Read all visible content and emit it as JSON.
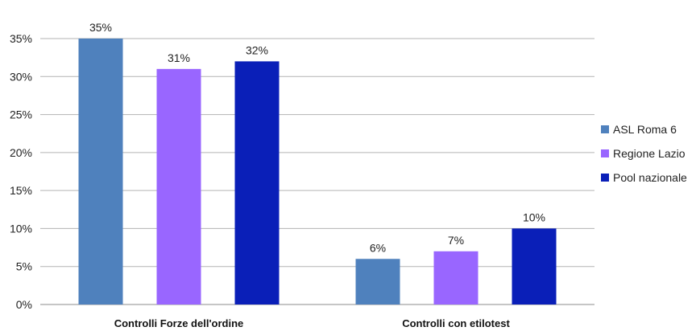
{
  "chart_data": {
    "type": "bar",
    "categories": [
      "Controlli Forze dell'ordine",
      "Controlli con  etilotest"
    ],
    "series": [
      {
        "name": "ASL Roma 6",
        "values": [
          35,
          6
        ],
        "color": "#4f81bd"
      },
      {
        "name": "Regione Lazio",
        "values": [
          31,
          7
        ],
        "color": "#9966ff"
      },
      {
        "name": "Pool nazionale",
        "values": [
          32,
          10
        ],
        "color": "#0a1fb8"
      }
    ],
    "data_labels": [
      [
        "35%",
        "6%"
      ],
      [
        "31%",
        "7%"
      ],
      [
        "32%",
        "10%"
      ]
    ],
    "yticks": [
      "0%",
      "5%",
      "10%",
      "15%",
      "20%",
      "25%",
      "30%",
      "35%"
    ],
    "ylim": [
      0,
      35
    ],
    "grid": true,
    "legend_position": "right",
    "title": "",
    "xlabel": "",
    "ylabel": ""
  }
}
